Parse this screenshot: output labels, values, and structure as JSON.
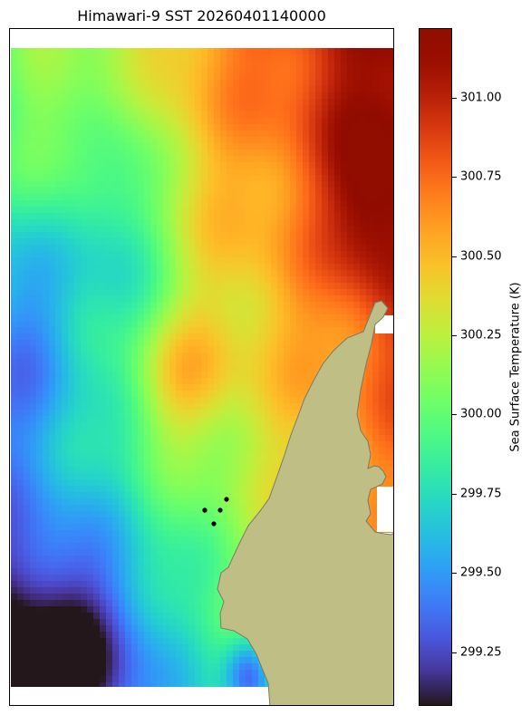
{
  "title": "Himawari-9 SST 20260401140000",
  "colorbar": {
    "label": "Sea Surface Temperature (K)",
    "min": 299.08,
    "max": 301.22,
    "colormap": "turbo",
    "ticks": [
      "299.25",
      "299.50",
      "299.75",
      "300.00",
      "300.25",
      "300.50",
      "300.75",
      "301.00"
    ]
  },
  "map": {
    "land_color": "#bfbf85",
    "coast_color": "#7a7a6a",
    "nodata_color": "#ffffff",
    "markers": {
      "count": 5,
      "color": "#000000"
    }
  }
}
